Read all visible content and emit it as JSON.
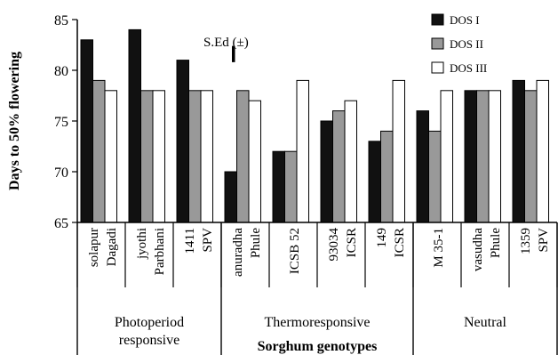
{
  "chart_data": {
    "type": "bar",
    "ylabel": "Days to 50% flowering",
    "xlabel": "Sorghum genotypes",
    "ylim": [
      65,
      85
    ],
    "yticks": [
      65,
      70,
      75,
      80,
      85
    ],
    "grid": false,
    "legend_position": "top-right",
    "categories": [
      [
        "Dagadi",
        "solapur"
      ],
      [
        "Parbhani",
        "jyothi"
      ],
      [
        "SPV",
        "1411"
      ],
      [
        "Phule",
        "anuradha"
      ],
      [
        "ICSB 52"
      ],
      [
        "ICSR",
        "93034"
      ],
      [
        "ICSR",
        "149"
      ],
      [
        "M 35-1"
      ],
      [
        "Phule",
        "vasudha"
      ],
      [
        "SPV",
        "1359"
      ]
    ],
    "groups": [
      {
        "label": [
          "Photoperiod",
          "responsive"
        ],
        "categories": 3
      },
      {
        "label": [
          "Thermoresponsive"
        ],
        "categories": 4
      },
      {
        "label": [
          "Neutral"
        ],
        "categories": 3
      }
    ],
    "series": [
      {
        "name": "DOS I",
        "color": "#111111",
        "values": [
          83,
          84,
          81,
          70,
          72,
          75,
          73,
          76,
          78,
          79
        ]
      },
      {
        "name": "DOS II",
        "color": "#999999",
        "values": [
          79,
          78,
          78,
          78,
          72,
          76,
          74,
          74,
          78,
          78
        ]
      },
      {
        "name": "DOS III",
        "color": "#ffffff",
        "values": [
          78,
          78,
          78,
          77,
          79,
          77,
          79,
          78,
          78,
          79
        ]
      }
    ],
    "annotation": {
      "label": "S.Ed (±)",
      "low": 80.8,
      "high": 82.4
    }
  }
}
